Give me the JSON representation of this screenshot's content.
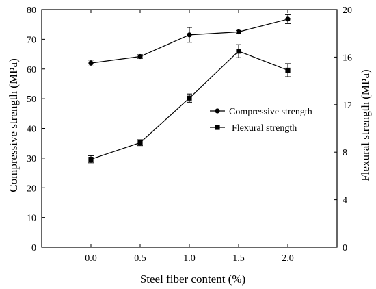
{
  "chart_data": {
    "type": "line",
    "x": [
      0.0,
      0.5,
      1.0,
      1.5,
      2.0
    ],
    "x_tick_labels": [
      "0.0",
      "0.5",
      "1.0",
      "1.5",
      "2.0"
    ],
    "xlabel": "Steel fiber content (%)",
    "ylabel_left": "Compressive strength (MPa)",
    "ylabel_right": "Flexural strength (MPa)",
    "xlim": [
      -0.5,
      2.5
    ],
    "ylim_left": [
      0,
      80
    ],
    "ylim_right": [
      0,
      20
    ],
    "y_ticks_left": [
      0,
      10,
      20,
      30,
      40,
      50,
      60,
      70,
      80
    ],
    "y_tick_labels_left": [
      "0",
      "10",
      "20",
      "30",
      "40",
      "50",
      "60",
      "70",
      "80"
    ],
    "y_ticks_right": [
      0,
      4,
      8,
      12,
      16,
      20
    ],
    "y_tick_labels_right": [
      "0",
      "4",
      "8",
      "12",
      "16",
      "20"
    ],
    "grid": false,
    "legend_position": "center-right",
    "series": [
      {
        "name": "Compressive strength",
        "axis": "left",
        "marker": "circle",
        "values": [
          62.0,
          64.2,
          71.5,
          72.5,
          76.8
        ],
        "errors": [
          1.0,
          0.6,
          2.5,
          0.5,
          1.5
        ],
        "color": "#000000"
      },
      {
        "name": "Flexural strength",
        "axis": "right",
        "marker": "square",
        "values": [
          7.4,
          8.8,
          12.55,
          16.5,
          14.9
        ],
        "errors": [
          0.3,
          0.25,
          0.35,
          0.55,
          0.55
        ],
        "color": "#000000"
      }
    ]
  }
}
